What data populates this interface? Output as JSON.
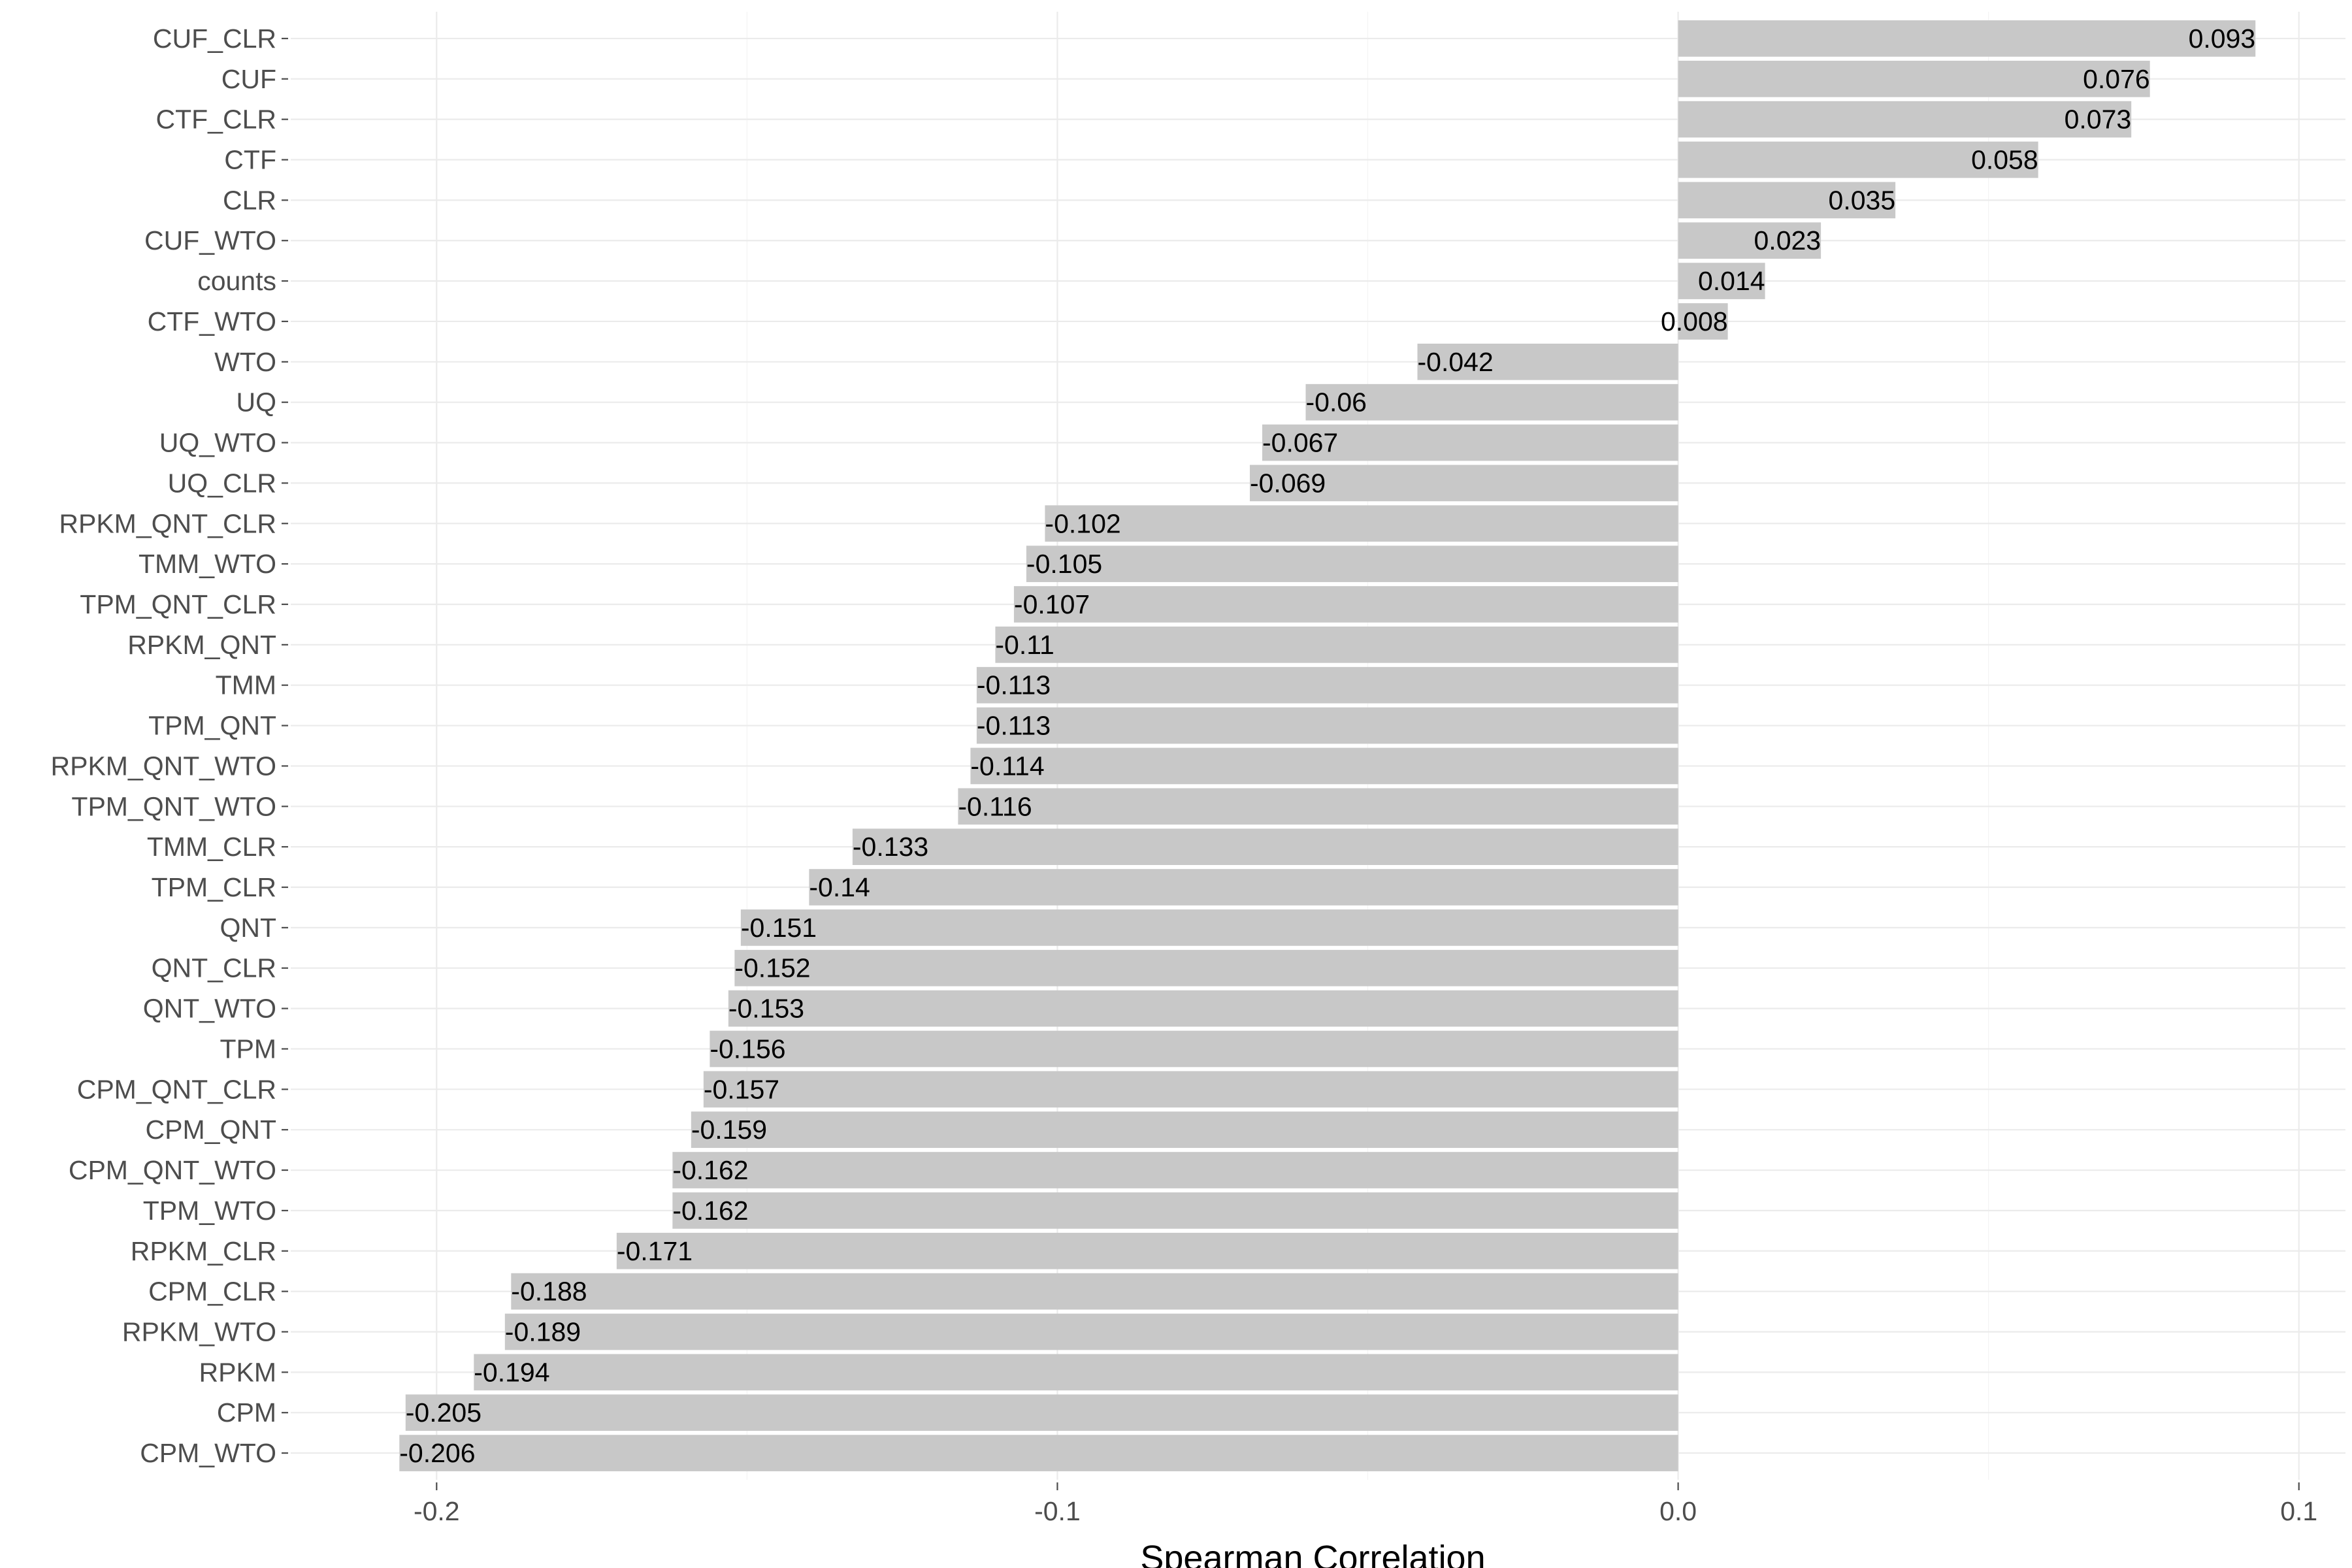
{
  "chart_data": {
    "type": "bar",
    "orientation": "horizontal",
    "xlabel": "Spearman Correlation",
    "ylabel": "",
    "title": "",
    "xlim": [
      -0.2235,
      0.1075
    ],
    "xticks": [
      -0.2,
      -0.1,
      0.0,
      0.1
    ],
    "xtick_labels": [
      "-0.2",
      "-0.1",
      "0.0",
      "0.1"
    ],
    "grid": true,
    "bar_color": "#c8c8c8",
    "categories": [
      "CUF_CLR",
      "CUF",
      "CTF_CLR",
      "CTF",
      "CLR",
      "CUF_WTO",
      "counts",
      "CTF_WTO",
      "WTO",
      "UQ",
      "UQ_WTO",
      "UQ_CLR",
      "RPKM_QNT_CLR",
      "TMM_WTO",
      "TPM_QNT_CLR",
      "RPKM_QNT",
      "TMM",
      "TPM_QNT",
      "RPKM_QNT_WTO",
      "TPM_QNT_WTO",
      "TMM_CLR",
      "TPM_CLR",
      "QNT",
      "QNT_CLR",
      "QNT_WTO",
      "TPM",
      "CPM_QNT_CLR",
      "CPM_QNT",
      "CPM_QNT_WTO",
      "TPM_WTO",
      "RPKM_CLR",
      "CPM_CLR",
      "RPKM_WTO",
      "RPKM",
      "CPM",
      "CPM_WTO"
    ],
    "values": [
      0.093,
      0.076,
      0.073,
      0.058,
      0.035,
      0.023,
      0.014,
      0.008,
      -0.042,
      -0.06,
      -0.067,
      -0.069,
      -0.102,
      -0.105,
      -0.107,
      -0.11,
      -0.113,
      -0.113,
      -0.114,
      -0.116,
      -0.133,
      -0.14,
      -0.151,
      -0.152,
      -0.153,
      -0.156,
      -0.157,
      -0.159,
      -0.162,
      -0.162,
      -0.171,
      -0.188,
      -0.189,
      -0.194,
      -0.205,
      -0.206
    ],
    "data_labels": [
      "0.093",
      "0.076",
      "0.073",
      "0.058",
      "0.035",
      "0.023",
      "0.014",
      "0.008",
      "-0.042",
      "-0.06",
      "-0.067",
      "-0.069",
      "-0.102",
      "-0.105",
      "-0.107",
      "-0.11",
      "-0.113",
      "-0.113",
      "-0.114",
      "-0.116",
      "-0.133",
      "-0.14",
      "-0.151",
      "-0.152",
      "-0.153",
      "-0.156",
      "-0.157",
      "-0.159",
      "-0.162",
      "-0.162",
      "-0.171",
      "-0.188",
      "-0.189",
      "-0.194",
      "-0.205",
      "-0.206"
    ]
  }
}
